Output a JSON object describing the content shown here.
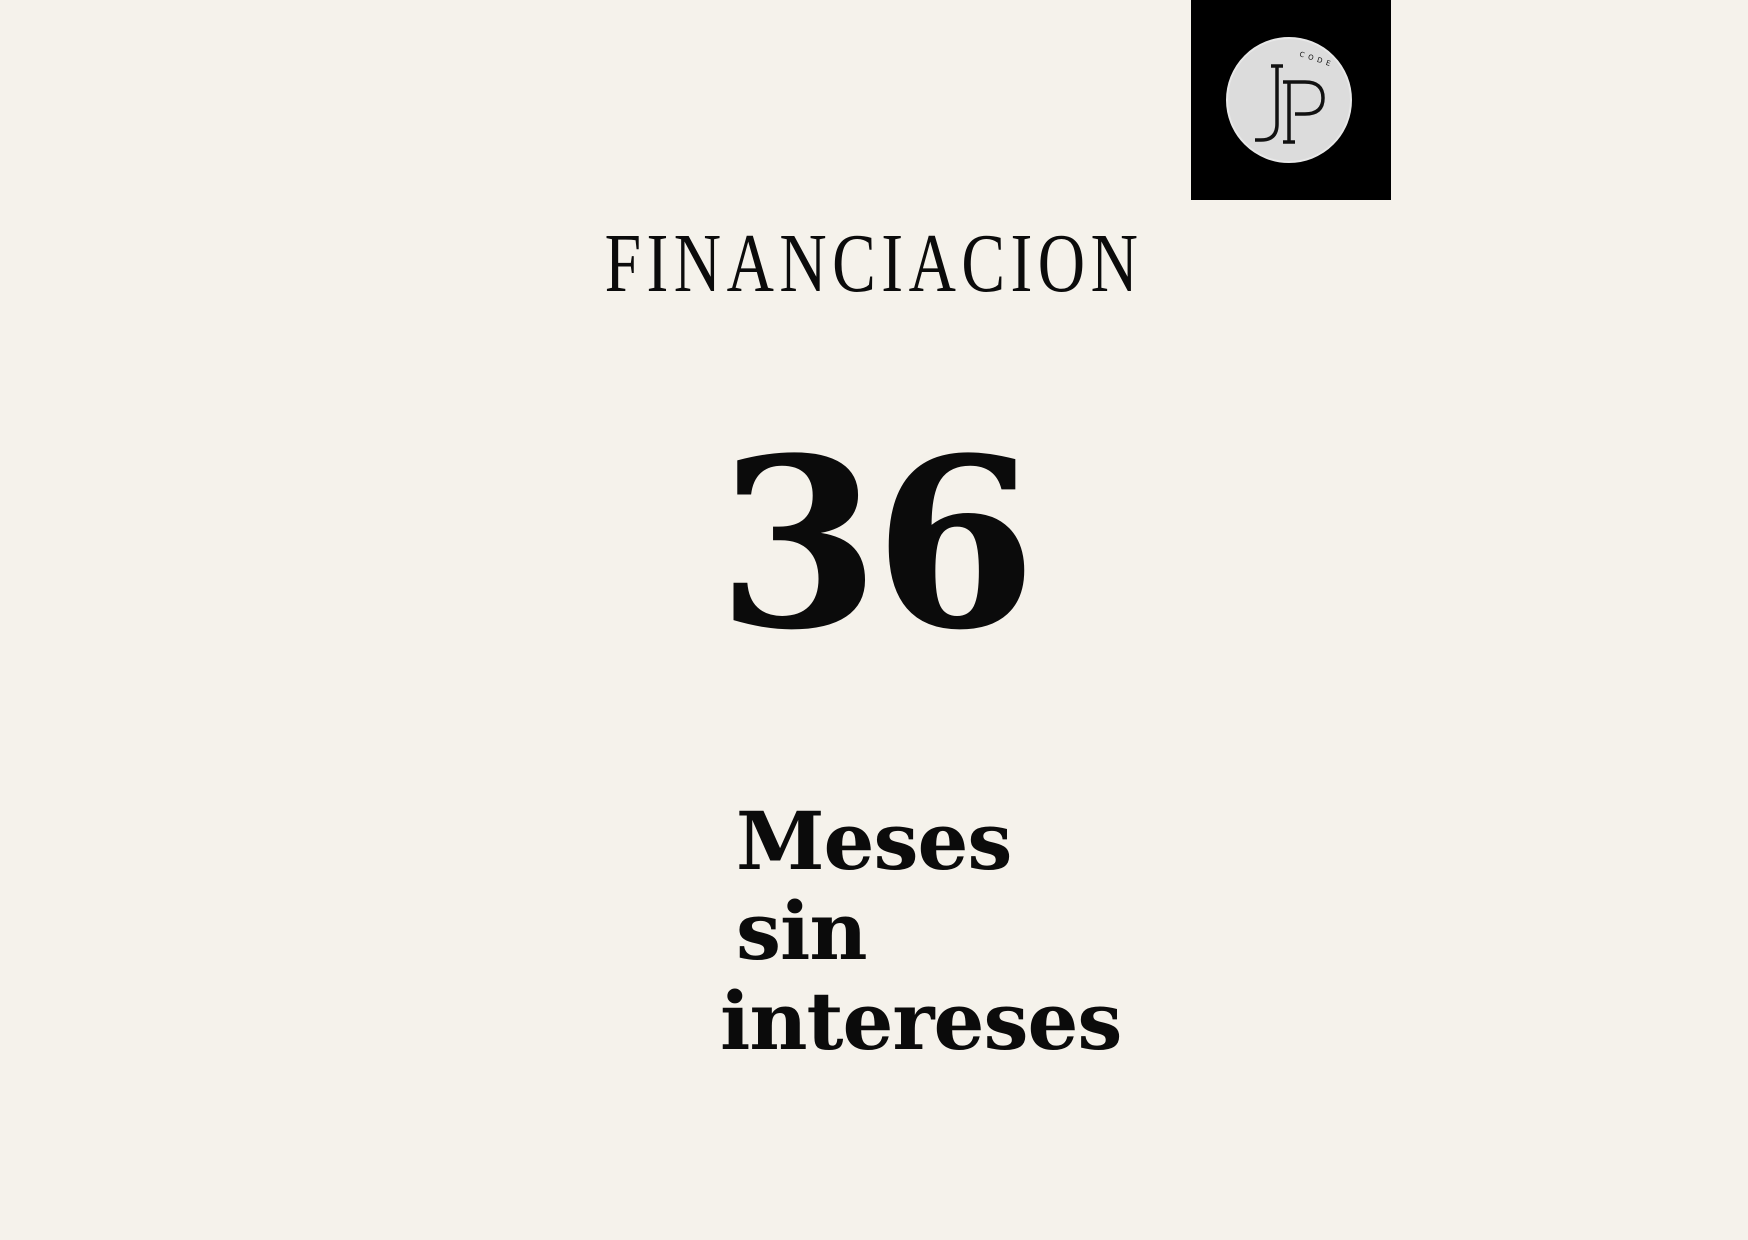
{
  "logo": {
    "monogram": "JP",
    "small_text": "CODE",
    "icon": "jp-code-logo",
    "colors": {
      "box": "#000000",
      "circle": "#dcdcdc",
      "letters": "#111111"
    }
  },
  "headline": "FINANCIACION",
  "number": "36",
  "caption": {
    "line1": "Meses sin",
    "line2": "intereses"
  },
  "colors": {
    "background": "#f5f2eb",
    "text": "#0b0b0b"
  }
}
